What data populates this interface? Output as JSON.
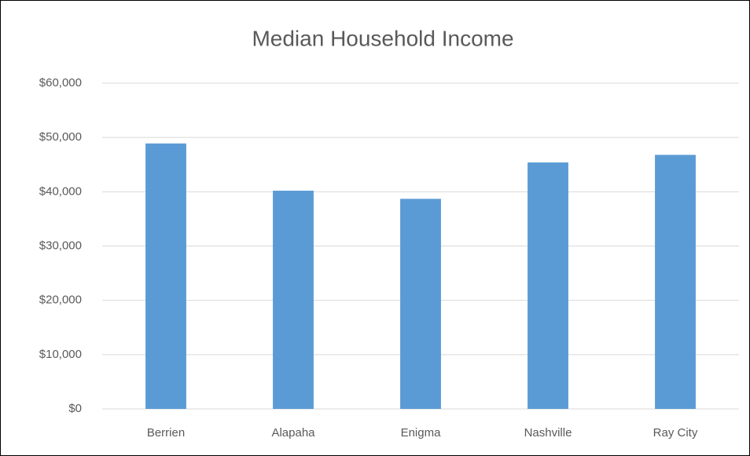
{
  "chart_data": {
    "type": "bar",
    "title": "Median Household Income",
    "categories": [
      "Berrien",
      "Alapaha",
      "Enigma",
      "Nashville",
      "Ray City"
    ],
    "values": [
      48900,
      40200,
      38700,
      45400,
      46800
    ],
    "color": "#5b9bd5",
    "ylim": [
      0,
      60000
    ],
    "yticks": [
      {
        "value": 0,
        "label": "$0"
      },
      {
        "value": 10000,
        "label": "$10,000"
      },
      {
        "value": 20000,
        "label": "$20,000"
      },
      {
        "value": 30000,
        "label": "$30,000"
      },
      {
        "value": 40000,
        "label": "$40,000"
      },
      {
        "value": 50000,
        "label": "$50,000"
      },
      {
        "value": 60000,
        "label": "$60,000"
      }
    ],
    "grid": true
  }
}
